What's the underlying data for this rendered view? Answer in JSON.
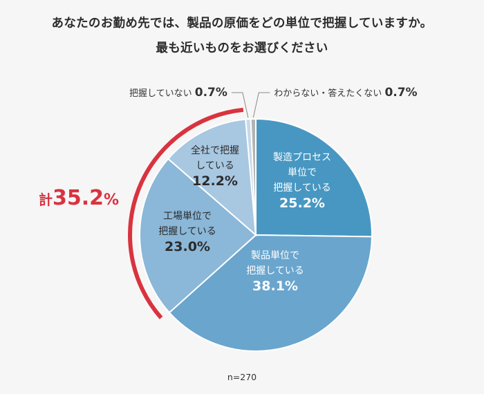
{
  "title_line1": "あなたのお勤め先では、製品の原価をどの単位で把握していますか。",
  "title_line2": "最も近いものをお選びください",
  "note": "n=270",
  "total_callout": {
    "prefix": "計",
    "value": "35.2",
    "unit": "%",
    "color": "#d9333f"
  },
  "chart_data": {
    "type": "pie",
    "n": 270,
    "start": "12 o'clock",
    "direction": "clockwise",
    "slices": [
      {
        "key": "process",
        "label_lines": [
          "製造プロセス",
          "単位で",
          "把握している"
        ],
        "value": 25.2,
        "value_text": "25.2%",
        "color": "#4897c2",
        "text_color": "#ffffff",
        "label_position": "inside"
      },
      {
        "key": "product",
        "label_lines": [
          "製品単位で",
          "把握している"
        ],
        "value": 38.1,
        "value_text": "38.1%",
        "color": "#6aa5cd",
        "text_color": "#ffffff",
        "label_position": "inside"
      },
      {
        "key": "factory",
        "label_lines": [
          "工場単位で",
          "把握している"
        ],
        "value": 23.0,
        "value_text": "23.0%",
        "color": "#8bb7d8",
        "text_color": "#2b2b2b",
        "label_position": "inside"
      },
      {
        "key": "company",
        "label_lines": [
          "全社で把握",
          "している"
        ],
        "value": 12.2,
        "value_text": "12.2%",
        "color": "#a8c7e1",
        "text_color": "#2b2b2b",
        "label_position": "inside"
      },
      {
        "key": "none",
        "label_lines": [
          "把握していない"
        ],
        "value": 0.7,
        "value_text": "0.7%",
        "color": "#c5d8ea",
        "text_color": "#333333",
        "label_position": "outside-left"
      },
      {
        "key": "unknown",
        "label_lines": [
          "わからない・答えたくない"
        ],
        "value": 0.7,
        "value_text": "0.7%",
        "color": "#b3b3b3",
        "text_color": "#333333",
        "label_position": "outside-right"
      }
    ]
  }
}
